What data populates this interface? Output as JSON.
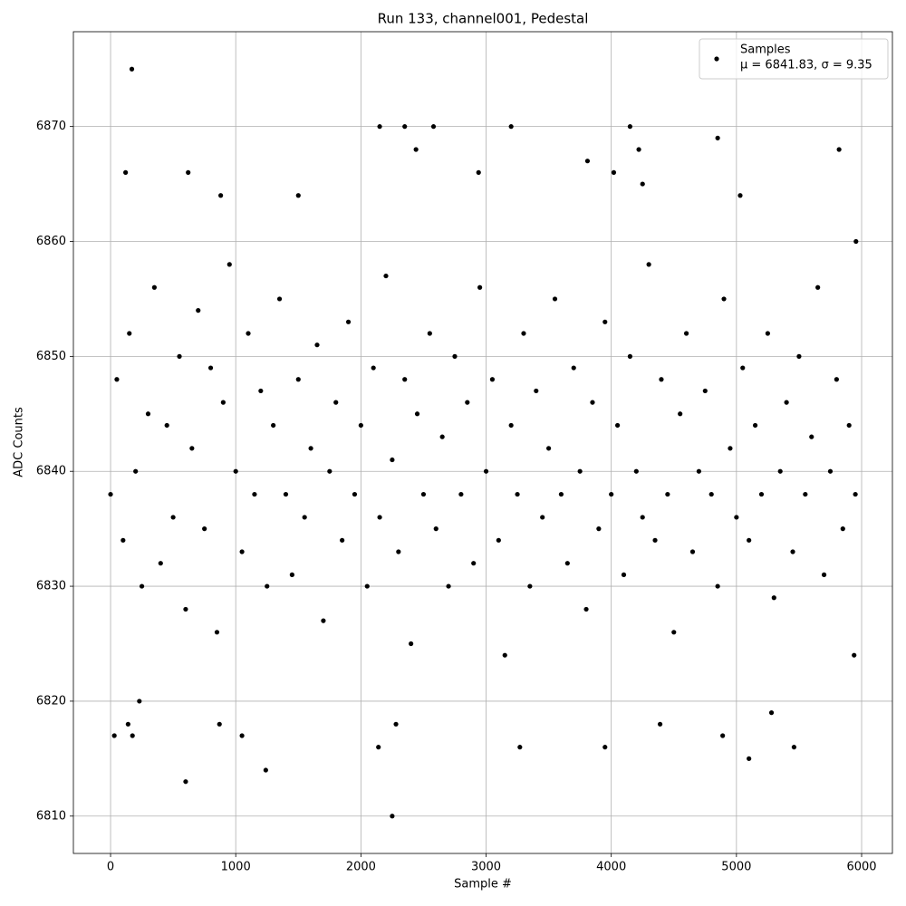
{
  "chart_data": {
    "type": "scatter",
    "title": "Run 133, channel001, Pedestal",
    "x_label": "Sample #",
    "y_label": "ADC Counts",
    "legend_note": "μ = 6841.83, σ = 9.35",
    "legend": "upper right",
    "grid": true,
    "xlim": [
      -297,
      6246
    ],
    "ylim": [
      6806.75,
      6878.25
    ],
    "xticks": [
      0,
      1000,
      2000,
      3000,
      4000,
      5000,
      6000
    ],
    "yticks": [
      6810,
      6820,
      6830,
      6840,
      6850,
      6860,
      6870
    ],
    "x": [
      0,
      50,
      100,
      150,
      200,
      250,
      300,
      350,
      400,
      450,
      500,
      550,
      600,
      650,
      700,
      750,
      800,
      850,
      900,
      950,
      1000,
      1050,
      1100,
      1150,
      1200,
      1250,
      1300,
      1350,
      1400,
      1450,
      1500,
      1550,
      1600,
      1650,
      1700,
      1750,
      1800,
      1850,
      1900,
      1950,
      2000,
      2050,
      2100,
      2150,
      2200,
      2250,
      2300,
      2350,
      2400,
      2450,
      2500,
      2550,
      2600,
      2650,
      2700,
      2750,
      2800,
      2850,
      2900,
      2950,
      3000,
      3050,
      3100,
      3150,
      3200,
      3250,
      3300,
      3350,
      3400,
      3450,
      3500,
      3550,
      3600,
      3650,
      3700,
      3750,
      3800,
      3850,
      3900,
      3950,
      4000,
      4050,
      4100,
      4150,
      4200,
      4250,
      4300,
      4350,
      4400,
      4450,
      4500,
      4550,
      4600,
      4650,
      4700,
      4750,
      4800,
      4850,
      4900,
      4950,
      5000,
      5050,
      5100,
      5150,
      5200,
      5250,
      5300,
      5350,
      5400,
      5450,
      5500,
      5550,
      5600,
      5650,
      5700,
      5750,
      5800,
      5850,
      5900,
      5950,
      30,
      170,
      120,
      140,
      175,
      230,
      600,
      620,
      870,
      880,
      1050,
      1240,
      1500,
      2140,
      2150,
      2250,
      2280,
      2350,
      2440,
      2580,
      2940,
      3200,
      3270,
      3810,
      3950,
      4020,
      4150,
      4220,
      4250,
      4390,
      4850,
      4890,
      5030,
      5100,
      5280,
      5460,
      5820,
      5955,
      5940
    ],
    "series": [
      {
        "name": "Samples",
        "color": "#000000",
        "values": [
          6838,
          6848,
          6834,
          6852,
          6840,
          6830,
          6845,
          6856,
          6832,
          6844,
          6836,
          6850,
          6828,
          6842,
          6854,
          6835,
          6849,
          6826,
          6846,
          6858,
          6840,
          6833,
          6852,
          6838,
          6847,
          6830,
          6844,
          6855,
          6838,
          6831,
          6848,
          6836,
          6842,
          6851,
          6827,
          6840,
          6846,
          6834,
          6853,
          6838,
          6844,
          6830,
          6849,
          6836,
          6857,
          6841,
          6833,
          6848,
          6825,
          6845,
          6838,
          6852,
          6835,
          6843,
          6830,
          6850,
          6838,
          6846,
          6832,
          6856,
          6840,
          6848,
          6834,
          6824,
          6844,
          6838,
          6852,
          6830,
          6847,
          6836,
          6842,
          6855,
          6838,
          6832,
          6849,
          6840,
          6828,
          6846,
          6835,
          6853,
          6838,
          6844,
          6831,
          6850,
          6840,
          6836,
          6858,
          6834,
          6848,
          6838,
          6826,
          6845,
          6852,
          6833,
          6840,
          6847,
          6838,
          6830,
          6855,
          6842,
          6836,
          6849,
          6834,
          6844,
          6838,
          6852,
          6829,
          6840,
          6846,
          6833,
          6850,
          6838,
          6843,
          6856,
          6831,
          6840,
          6848,
          6835,
          6844,
          6838,
          6817,
          6875,
          6866,
          6818,
          6817,
          6820,
          6813,
          6866,
          6818,
          6864,
          6817,
          6814,
          6864,
          6816,
          6870,
          6810,
          6818,
          6870,
          6868,
          6870,
          6866,
          6870,
          6816,
          6867,
          6816,
          6866,
          6870,
          6868,
          6865,
          6818,
          6869,
          6817,
          6864,
          6815,
          6819,
          6816,
          6868,
          6860,
          6824
        ]
      }
    ]
  }
}
